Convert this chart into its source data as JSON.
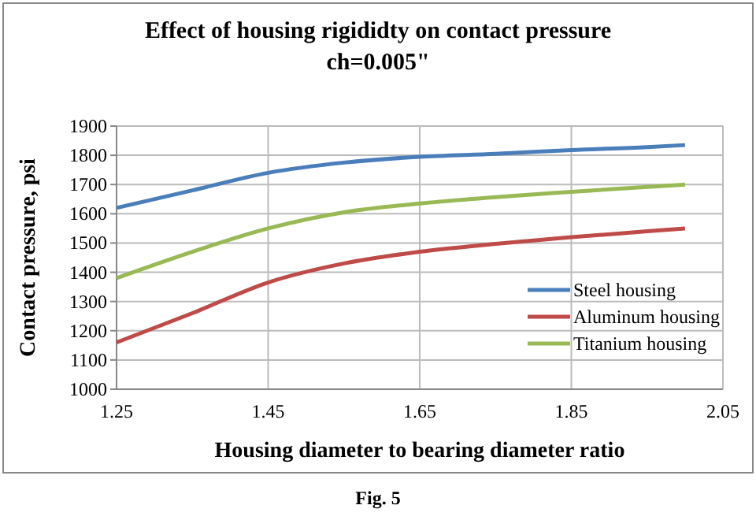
{
  "chart_data": {
    "type": "line",
    "title": "Effect of housing rigididty  on contact pressure ch=0.005\"",
    "xlabel": "Housing diameter to bearing diameter ratio",
    "ylabel": "Contact pressure, psi",
    "annotations": [
      "Fig. 5"
    ],
    "x": [
      1.25,
      1.35,
      1.45,
      1.55,
      1.65,
      1.75,
      1.85,
      1.95,
      2.0
    ],
    "series": [
      {
        "name": "Steel housing",
        "color": "#4a7ebb",
        "values": [
          1620,
          1680,
          1740,
          1775,
          1795,
          1805,
          1818,
          1828,
          1835
        ]
      },
      {
        "name": "Aluminum housing",
        "color": "#be4b48",
        "values": [
          1160,
          1260,
          1365,
          1430,
          1470,
          1497,
          1520,
          1540,
          1550
        ]
      },
      {
        "name": "Titanium housing",
        "color": "#98b954",
        "values": [
          1380,
          1470,
          1550,
          1605,
          1635,
          1657,
          1675,
          1692,
          1700
        ]
      }
    ],
    "xlim": [
      1.25,
      2.05
    ],
    "xticks": [
      1.25,
      1.45,
      1.65,
      1.85,
      2.05
    ],
    "ylim": [
      1000,
      1900
    ],
    "yticks": [
      1000,
      1100,
      1200,
      1300,
      1400,
      1500,
      1600,
      1700,
      1800,
      1900
    ],
    "grid": true,
    "legend": "right",
    "marker": "none",
    "line_style": "solid"
  }
}
